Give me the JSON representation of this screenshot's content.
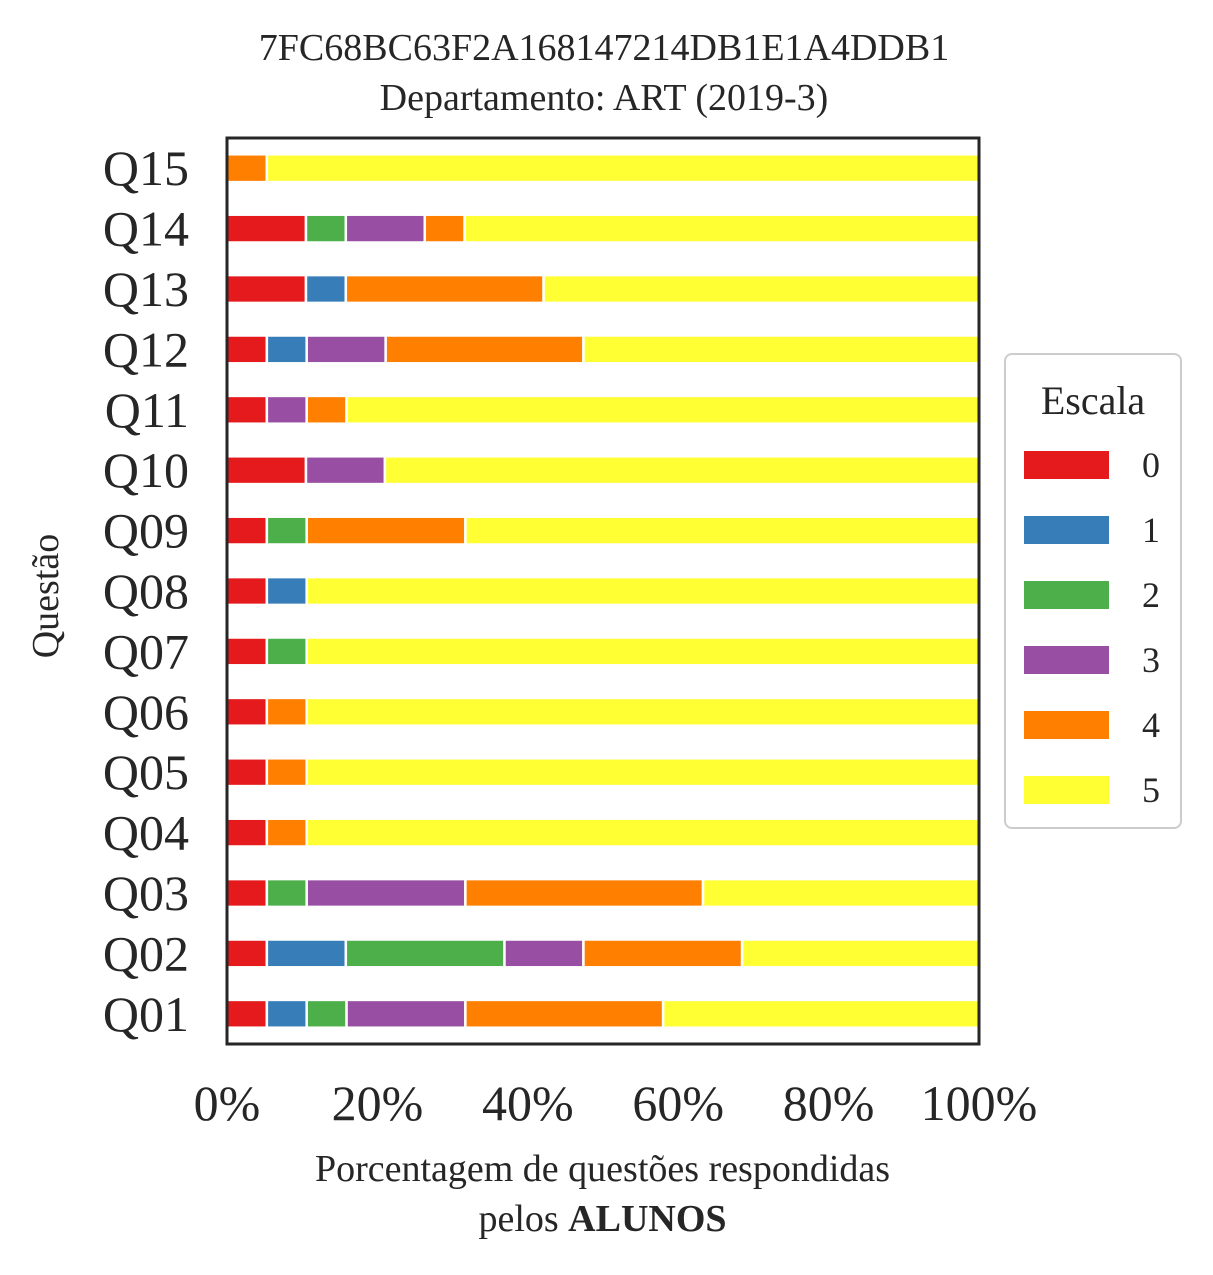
{
  "chart_data": {
    "type": "bar",
    "orientation": "horizontal",
    "stacked": true,
    "title_line1": "7FC68BC63F2A168147214DB1E1A4DDB1",
    "title_line2": "Departamento: ART (2019-3)",
    "xlabel_line1": "Porcentagem de questões respondidas",
    "xlabel_line2_prefix": "pelos ",
    "xlabel_line2_bold": "ALUNOS",
    "ylabel": "Questão",
    "xlim": [
      0,
      100
    ],
    "xticks": [
      "0%",
      "20%",
      "40%",
      "60%",
      "80%",
      "100%"
    ],
    "categories": [
      "Q01",
      "Q02",
      "Q03",
      "Q04",
      "Q05",
      "Q06",
      "Q07",
      "Q08",
      "Q09",
      "Q10",
      "Q11",
      "Q12",
      "Q13",
      "Q14",
      "Q15"
    ],
    "legend_title": "Escala",
    "legend_position": "right",
    "series": [
      {
        "name": "0",
        "color": "#e41a1c",
        "values": [
          5.3,
          5.3,
          5.3,
          5.3,
          5.3,
          5.3,
          5.3,
          5.3,
          5.3,
          10.5,
          5.3,
          5.3,
          10.5,
          10.5,
          0
        ]
      },
      {
        "name": "1",
        "color": "#377eb8",
        "values": [
          5.3,
          10.5,
          0,
          0,
          0,
          0,
          0,
          5.3,
          0,
          0,
          0,
          5.3,
          5.3,
          0,
          0
        ]
      },
      {
        "name": "2",
        "color": "#4daf4a",
        "values": [
          5.3,
          21.1,
          5.3,
          0,
          0,
          0,
          5.3,
          0,
          5.3,
          0,
          0,
          0,
          0,
          5.3,
          0
        ]
      },
      {
        "name": "3",
        "color": "#984ea3",
        "values": [
          15.8,
          10.5,
          21.1,
          0,
          0,
          0,
          0,
          0,
          0,
          10.5,
          5.3,
          10.5,
          0,
          10.5,
          0
        ]
      },
      {
        "name": "4",
        "color": "#ff7f00",
        "values": [
          26.3,
          21.1,
          31.6,
          5.3,
          5.3,
          5.3,
          0,
          0,
          21.1,
          0,
          5.3,
          26.3,
          26.3,
          5.3,
          5.3
        ]
      },
      {
        "name": "5",
        "color": "#ffff33",
        "values": [
          42.0,
          31.5,
          36.7,
          89.4,
          89.4,
          89.4,
          89.4,
          89.4,
          68.3,
          79.0,
          84.1,
          52.6,
          57.9,
          68.4,
          94.7
        ]
      }
    ]
  }
}
